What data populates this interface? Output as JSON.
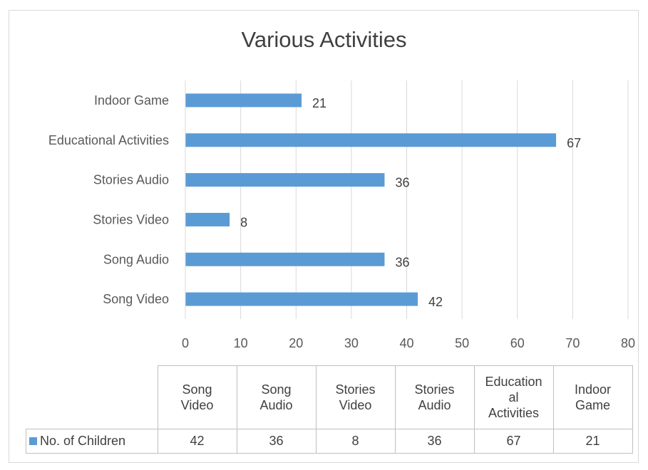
{
  "chart_data": {
    "type": "bar",
    "orientation": "horizontal",
    "title": "Various Activities",
    "categories": [
      "Song Video",
      "Song Audio",
      "Stories Video",
      "Stories Audio",
      "Educational Activities",
      "Indoor Game"
    ],
    "table_headers": [
      "Song\nVideo",
      "Song\nAudio",
      "Stories\nVideo",
      "Stories\nAudio",
      "Education\nal\nActivities",
      "Indoor\nGame"
    ],
    "series": [
      {
        "name": "No. of Children",
        "values": [
          42,
          36,
          8,
          36,
          67,
          21
        ]
      }
    ],
    "xlim": [
      0,
      80
    ],
    "xticks": [
      "0",
      "10",
      "20",
      "30",
      "40",
      "50",
      "60",
      "70",
      "80"
    ],
    "grid": true,
    "data_labels": true,
    "data_table": true,
    "color": "#5b9bd5"
  }
}
